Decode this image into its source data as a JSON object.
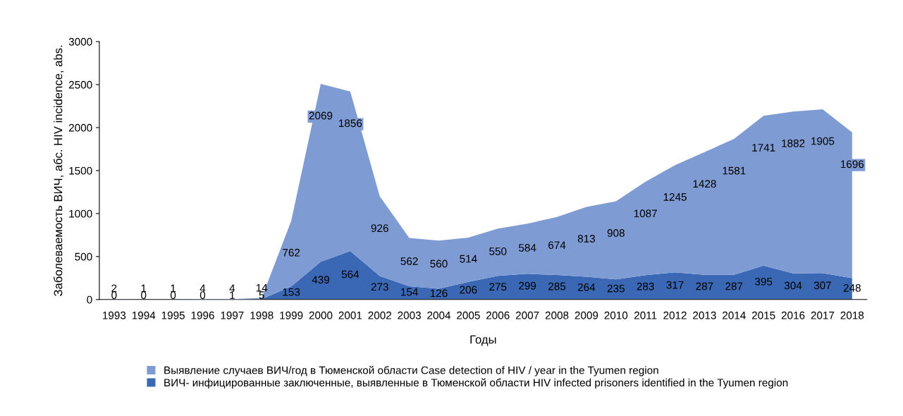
{
  "chart_data": {
    "type": "area",
    "stacked": true,
    "xlabel": "Годы",
    "ylabel": "Заболеваемость ВИЧ, абс. HIV incidence, abs.",
    "categories": [
      "1993",
      "1994",
      "1995",
      "1996",
      "1997",
      "1998",
      "1999",
      "2000",
      "2001",
      "2002",
      "2003",
      "2004",
      "2005",
      "2006",
      "2007",
      "2008",
      "2009",
      "2010",
      "2011",
      "2012",
      "2013",
      "2014",
      "2015",
      "2016",
      "2017",
      "2018"
    ],
    "series": [
      {
        "name": "ВИЧ- инфицированные заключенные, выявленные в Тюменской области HIV infected prisoners identified in the Tyumen region",
        "color": "#3a68b5",
        "values": [
          0,
          0,
          0,
          0,
          1,
          5,
          153,
          439,
          564,
          273,
          154,
          126,
          206,
          275,
          299,
          285,
          264,
          235,
          283,
          317,
          287,
          287,
          395,
          304,
          307,
          248
        ]
      },
      {
        "name": "Выявление случаев ВИЧ/год в Тюменской области Case detection of HIV / year in the Tyumen region",
        "color": "#7f9bd3",
        "values": [
          2,
          1,
          1,
          4,
          4,
          14,
          762,
          2069,
          1856,
          926,
          562,
          560,
          514,
          550,
          584,
          674,
          813,
          908,
          1087,
          1245,
          1428,
          1581,
          1741,
          1882,
          1905,
          1696
        ]
      }
    ],
    "ylim": [
      0,
      3000
    ],
    "yticks": [
      0,
      500,
      1000,
      1500,
      2000,
      2500,
      3000
    ],
    "grid": false,
    "legend": "bottom",
    "data_labels": true
  }
}
